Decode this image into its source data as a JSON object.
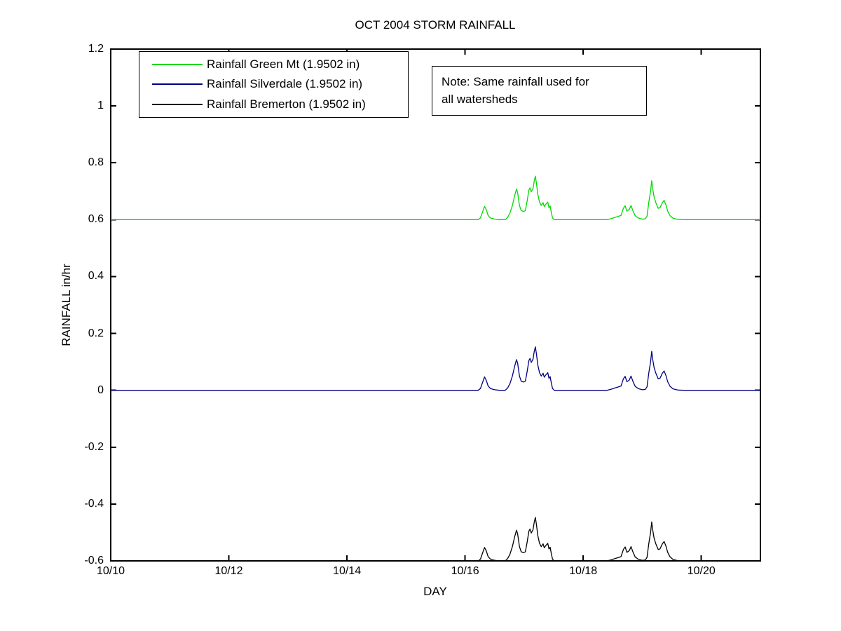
{
  "figure": {
    "background": "#ffffff",
    "axis_color": "#000000"
  },
  "chart_data": {
    "type": "line",
    "title": "OCT 2004 STORM RAINFALL",
    "xlabel": "DAY",
    "ylabel": "RAINFALL in/hr",
    "ylim": [
      -0.6,
      1.2
    ],
    "xlim": [
      0,
      11
    ],
    "x_unit": "days since 10/10",
    "grid": false,
    "legend_position": "upper-left-inside",
    "note_lines": [
      "Note: Same rainfall used for",
      "all watersheds"
    ],
    "x_ticks": [
      {
        "value": 0,
        "label": "10/10"
      },
      {
        "value": 2,
        "label": "10/12"
      },
      {
        "value": 4,
        "label": "10/14"
      },
      {
        "value": 6,
        "label": "10/16"
      },
      {
        "value": 8,
        "label": "10/18"
      },
      {
        "value": 10,
        "label": "10/20"
      }
    ],
    "y_ticks": [
      {
        "value": -0.6,
        "label": "-0.6"
      },
      {
        "value": -0.4,
        "label": "-0.4"
      },
      {
        "value": -0.2,
        "label": "-0.2"
      },
      {
        "value": 0,
        "label": "0"
      },
      {
        "value": 0.2,
        "label": "0.2"
      },
      {
        "value": 0.4,
        "label": "0.4"
      },
      {
        "value": 0.6,
        "label": "0.6"
      },
      {
        "value": 0.8,
        "label": "0.8"
      },
      {
        "value": 1,
        "label": "1"
      },
      {
        "value": 1.2,
        "label": "1.2"
      }
    ],
    "series": [
      {
        "label": "Rainfall Green Mt (1.9502 in)",
        "color": "#00d900",
        "baseline_offset": 0.6
      },
      {
        "label": "Rainfall Silverdale (1.9502 in)",
        "color": "#000080",
        "baseline_offset": 0
      },
      {
        "label": "Rainfall Bremerton (1.9502 in)",
        "color": "#000000",
        "baseline_offset": -0.6
      }
    ],
    "rainfall_profile": {
      "x_unit": "days since 10/10",
      "y_unit": "in/hr",
      "note": "identical profile plotted for all three gauges, shifted by baseline_offset",
      "points": [
        [
          0,
          0
        ],
        [
          6.22,
          0
        ],
        [
          6.26,
          0.006
        ],
        [
          6.3,
          0.03
        ],
        [
          6.33,
          0.047
        ],
        [
          6.36,
          0.034
        ],
        [
          6.39,
          0.015
        ],
        [
          6.43,
          0.006
        ],
        [
          6.5,
          0.002
        ],
        [
          6.58,
          0
        ],
        [
          6.68,
          0
        ],
        [
          6.72,
          0.008
        ],
        [
          6.76,
          0.024
        ],
        [
          6.8,
          0.05
        ],
        [
          6.84,
          0.085
        ],
        [
          6.87,
          0.108
        ],
        [
          6.89,
          0.095
        ],
        [
          6.92,
          0.05
        ],
        [
          6.95,
          0.032
        ],
        [
          6.99,
          0.029
        ],
        [
          7.02,
          0.032
        ],
        [
          7.05,
          0.065
        ],
        [
          7.08,
          0.105
        ],
        [
          7.1,
          0.112
        ],
        [
          7.12,
          0.098
        ],
        [
          7.15,
          0.11
        ],
        [
          7.17,
          0.135
        ],
        [
          7.19,
          0.153
        ],
        [
          7.21,
          0.125
        ],
        [
          7.23,
          0.09
        ],
        [
          7.26,
          0.062
        ],
        [
          7.29,
          0.05
        ],
        [
          7.32,
          0.06
        ],
        [
          7.34,
          0.046
        ],
        [
          7.37,
          0.055
        ],
        [
          7.4,
          0.062
        ],
        [
          7.42,
          0.042
        ],
        [
          7.44,
          0.048
        ],
        [
          7.46,
          0.025
        ],
        [
          7.48,
          0.006
        ],
        [
          7.51,
          0
        ],
        [
          8.4,
          0
        ],
        [
          8.48,
          0.004
        ],
        [
          8.55,
          0.009
        ],
        [
          8.6,
          0.012
        ],
        [
          8.64,
          0.015
        ],
        [
          8.68,
          0.04
        ],
        [
          8.71,
          0.049
        ],
        [
          8.74,
          0.03
        ],
        [
          8.78,
          0.036
        ],
        [
          8.81,
          0.05
        ],
        [
          8.84,
          0.032
        ],
        [
          8.88,
          0.014
        ],
        [
          8.93,
          0.006
        ],
        [
          9.0,
          0.002
        ],
        [
          9.05,
          0.003
        ],
        [
          9.08,
          0.012
        ],
        [
          9.11,
          0.06
        ],
        [
          9.14,
          0.1
        ],
        [
          9.16,
          0.137
        ],
        [
          9.18,
          0.105
        ],
        [
          9.2,
          0.08
        ],
        [
          9.23,
          0.06
        ],
        [
          9.27,
          0.04
        ],
        [
          9.3,
          0.042
        ],
        [
          9.34,
          0.06
        ],
        [
          9.37,
          0.068
        ],
        [
          9.4,
          0.052
        ],
        [
          9.43,
          0.03
        ],
        [
          9.47,
          0.014
        ],
        [
          9.52,
          0.005
        ],
        [
          9.6,
          0.001
        ],
        [
          9.7,
          0
        ],
        [
          11,
          0
        ]
      ]
    }
  }
}
